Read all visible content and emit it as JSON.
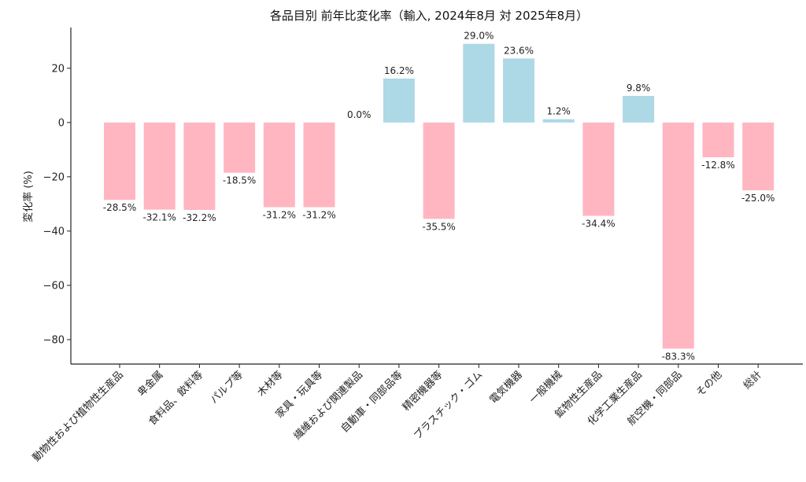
{
  "chart_data": {
    "type": "bar",
    "title": "各品目別 前年比変化率（輸入, 2024年8月 対 2025年8月）",
    "xlabel": "",
    "ylabel": "変化率 (%)",
    "ylim": [
      -89,
      35
    ],
    "yticks": [
      20,
      0,
      -20,
      -40,
      -60,
      -80
    ],
    "ytick_labels": [
      "20",
      "0",
      "−20",
      "−40",
      "−60",
      "−80"
    ],
    "categories": [
      "動物性および植物性生産品",
      "卑金属",
      "食料品、飲料等",
      "パルプ等",
      "木材等",
      "家具・玩具等",
      "繊維および関連製品",
      "自動車・同部品等",
      "精密機器等",
      "プラスチック・ゴム",
      "電気機器",
      "一般機械",
      "鉱物性生産品",
      "化学工業生産品",
      "航空機・同部品",
      "その他",
      "総計"
    ],
    "values": [
      -28.5,
      -32.1,
      -32.2,
      -18.5,
      -31.2,
      -31.2,
      0.0,
      16.2,
      -35.5,
      29.0,
      23.6,
      1.2,
      -34.4,
      9.8,
      -83.3,
      -12.8,
      -25.0
    ],
    "data_labels": [
      "-28.5%",
      "-32.1%",
      "-32.2%",
      "-18.5%",
      "-31.2%",
      "-31.2%",
      "0.0%",
      "16.2%",
      "-35.5%",
      "29.0%",
      "23.6%",
      "1.2%",
      "-34.4%",
      "9.8%",
      "-83.3%",
      "-12.8%",
      "-25.0%"
    ],
    "colors": {
      "positive": "#add8e6",
      "negative": "#ffb6c1"
    },
    "grid": false
  }
}
